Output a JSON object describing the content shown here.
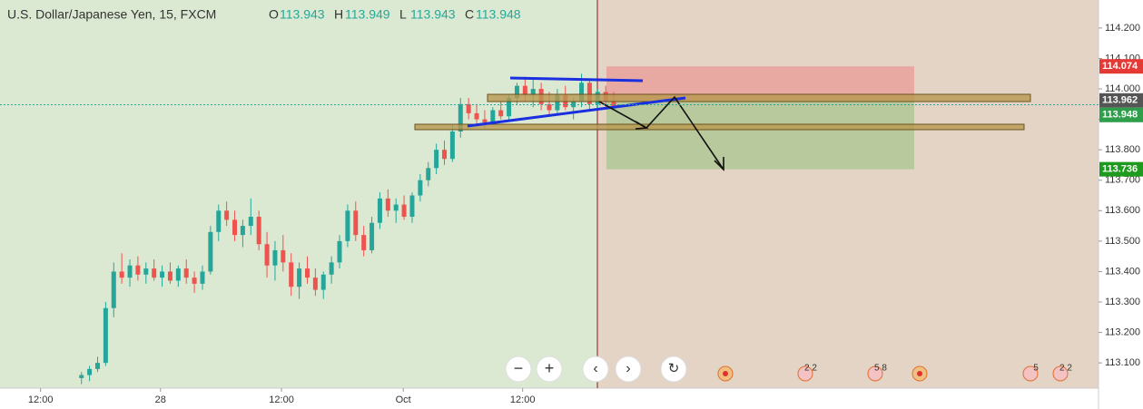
{
  "chart_data": {
    "type": "candlestick",
    "title": "U.S. Dollar/Japanese Yen, 15, FXCM",
    "ohlc_labels": [
      "O",
      "H",
      "L",
      "C"
    ],
    "ohlc": [
      [
        113.05,
        113.07,
        113.03,
        113.06
      ],
      [
        113.06,
        113.09,
        113.04,
        113.08
      ],
      [
        113.08,
        113.12,
        113.07,
        113.1
      ],
      [
        113.1,
        113.3,
        113.09,
        113.28
      ],
      [
        113.28,
        113.43,
        113.25,
        113.4
      ],
      [
        113.4,
        113.46,
        113.36,
        113.38
      ],
      [
        113.38,
        113.44,
        113.35,
        113.42
      ],
      [
        113.42,
        113.45,
        113.37,
        113.39
      ],
      [
        113.39,
        113.43,
        113.36,
        113.41
      ],
      [
        113.41,
        113.44,
        113.37,
        113.38
      ],
      [
        113.38,
        113.42,
        113.35,
        113.4
      ],
      [
        113.4,
        113.43,
        113.36,
        113.37
      ],
      [
        113.37,
        113.42,
        113.35,
        113.41
      ],
      [
        113.41,
        113.44,
        113.36,
        113.38
      ],
      [
        113.38,
        113.4,
        113.33,
        113.36
      ],
      [
        113.36,
        113.42,
        113.34,
        113.4
      ],
      [
        113.4,
        113.55,
        113.39,
        113.53
      ],
      [
        113.53,
        113.62,
        113.5,
        113.6
      ],
      [
        113.6,
        113.63,
        113.55,
        113.57
      ],
      [
        113.57,
        113.6,
        113.5,
        113.52
      ],
      [
        113.52,
        113.57,
        113.48,
        113.55
      ],
      [
        113.55,
        113.64,
        113.52,
        113.58
      ],
      [
        113.58,
        113.6,
        113.47,
        113.49
      ],
      [
        113.49,
        113.53,
        113.38,
        113.42
      ],
      [
        113.42,
        113.5,
        113.37,
        113.47
      ],
      [
        113.47,
        113.52,
        113.4,
        113.43
      ],
      [
        113.43,
        113.46,
        113.32,
        113.35
      ],
      [
        113.35,
        113.43,
        113.31,
        113.41
      ],
      [
        113.41,
        113.45,
        113.36,
        113.38
      ],
      [
        113.38,
        113.41,
        113.32,
        113.34
      ],
      [
        113.34,
        113.4,
        113.31,
        113.39
      ],
      [
        113.39,
        113.45,
        113.36,
        113.43
      ],
      [
        113.43,
        113.52,
        113.41,
        113.5
      ],
      [
        113.5,
        113.62,
        113.48,
        113.6
      ],
      [
        113.6,
        113.63,
        113.5,
        113.52
      ],
      [
        113.52,
        113.55,
        113.45,
        113.47
      ],
      [
        113.47,
        113.58,
        113.46,
        113.56
      ],
      [
        113.56,
        113.66,
        113.54,
        113.64
      ],
      [
        113.64,
        113.67,
        113.58,
        113.6
      ],
      [
        113.6,
        113.64,
        113.56,
        113.62
      ],
      [
        113.62,
        113.65,
        113.57,
        113.58
      ],
      [
        113.58,
        113.66,
        113.56,
        113.65
      ],
      [
        113.65,
        113.72,
        113.63,
        113.7
      ],
      [
        113.7,
        113.76,
        113.68,
        113.74
      ],
      [
        113.74,
        113.82,
        113.72,
        113.8
      ],
      [
        113.8,
        113.83,
        113.75,
        113.77
      ],
      [
        113.77,
        113.88,
        113.76,
        113.86
      ],
      [
        113.86,
        113.97,
        113.84,
        113.95
      ],
      [
        113.95,
        113.97,
        113.9,
        113.92
      ],
      [
        113.92,
        113.95,
        113.88,
        113.9
      ],
      [
        113.9,
        113.93,
        113.87,
        113.89
      ],
      [
        113.89,
        113.94,
        113.88,
        113.93
      ],
      [
        113.93,
        113.96,
        113.9,
        113.91
      ],
      [
        113.91,
        113.98,
        113.9,
        113.97
      ],
      [
        113.97,
        114.02,
        113.95,
        114.01
      ],
      [
        114.01,
        114.04,
        113.96,
        113.98
      ],
      [
        113.98,
        114.03,
        113.94,
        114.0
      ],
      [
        114.0,
        114.02,
        113.93,
        113.95
      ],
      [
        113.95,
        113.99,
        113.91,
        113.93
      ],
      [
        113.93,
        114.0,
        113.92,
        113.98
      ],
      [
        113.98,
        114.01,
        113.93,
        113.94
      ],
      [
        113.94,
        113.97,
        113.9,
        113.96
      ],
      [
        113.96,
        114.05,
        113.94,
        114.02
      ],
      [
        114.02,
        114.03,
        113.93,
        113.95
      ],
      [
        113.95,
        114.0,
        113.93,
        113.99
      ],
      [
        113.99,
        114.01,
        113.94,
        113.96
      ],
      [
        113.96,
        113.99,
        113.94,
        113.943
      ],
      [
        113.943,
        113.949,
        113.943,
        113.948
      ]
    ],
    "up_color": "#26a69a",
    "down_color": "#ef5350",
    "xlim": [
      -10.1,
      126.1
    ],
    "xticks": [
      {
        "value": -5.07,
        "label": "12:00"
      },
      {
        "value": 9.8,
        "label": "28"
      },
      {
        "value": 24.8,
        "label": "12:00"
      },
      {
        "value": 39.9,
        "label": "Oct"
      },
      {
        "value": 54.7,
        "label": "12:00"
      }
    ],
    "ylim": [
      113.017,
      114.292
    ],
    "yticks": [
      {
        "value": 113.1,
        "label": "113.100"
      },
      {
        "value": 113.2,
        "label": "113.200"
      },
      {
        "value": 113.3,
        "label": "113.300"
      },
      {
        "value": 113.4,
        "label": "113.400"
      },
      {
        "value": 113.5,
        "label": "113.500"
      },
      {
        "value": 113.6,
        "label": "113.600"
      },
      {
        "value": 113.7,
        "label": "113.700"
      },
      {
        "value": 113.8,
        "label": "113.800"
      },
      {
        "value": 113.9,
        "label": "113.900"
      },
      {
        "value": 114.0,
        "label": "114.000"
      },
      {
        "value": 114.1,
        "label": "114.100"
      },
      {
        "value": 114.2,
        "label": "114.200"
      }
    ],
    "position": {
      "stop": 114.074,
      "entry": 113.962,
      "target": 113.736
    },
    "event_labels": [
      "2 2",
      "5 8",
      "5",
      "2 2"
    ]
  }
}
